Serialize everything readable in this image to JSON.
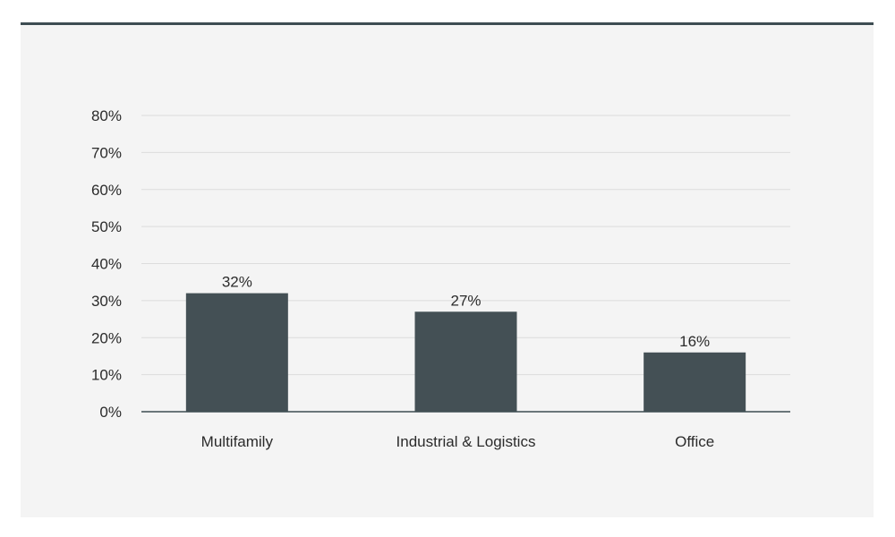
{
  "chart_data": {
    "type": "bar",
    "categories": [
      "Multifamily",
      "Industrial & Logistics",
      "Office"
    ],
    "values": [
      32,
      27,
      16
    ],
    "value_labels": [
      "32%",
      "27%",
      "16%"
    ],
    "title": "",
    "xlabel": "",
    "ylabel": "",
    "ylim": [
      0,
      80
    ],
    "yticks": [
      0,
      10,
      20,
      30,
      40,
      50,
      60,
      70,
      80
    ],
    "ytick_labels": [
      "0%",
      "10%",
      "20%",
      "30%",
      "40%",
      "50%",
      "60%",
      "70%",
      "80%"
    ],
    "grid": true,
    "legend": "none",
    "colors": {
      "bar": "#445055",
      "grid": "#dcdcdc",
      "axis": "#3d4c52",
      "panel_border": "#3d4c52",
      "background": "#f4f4f4"
    }
  }
}
